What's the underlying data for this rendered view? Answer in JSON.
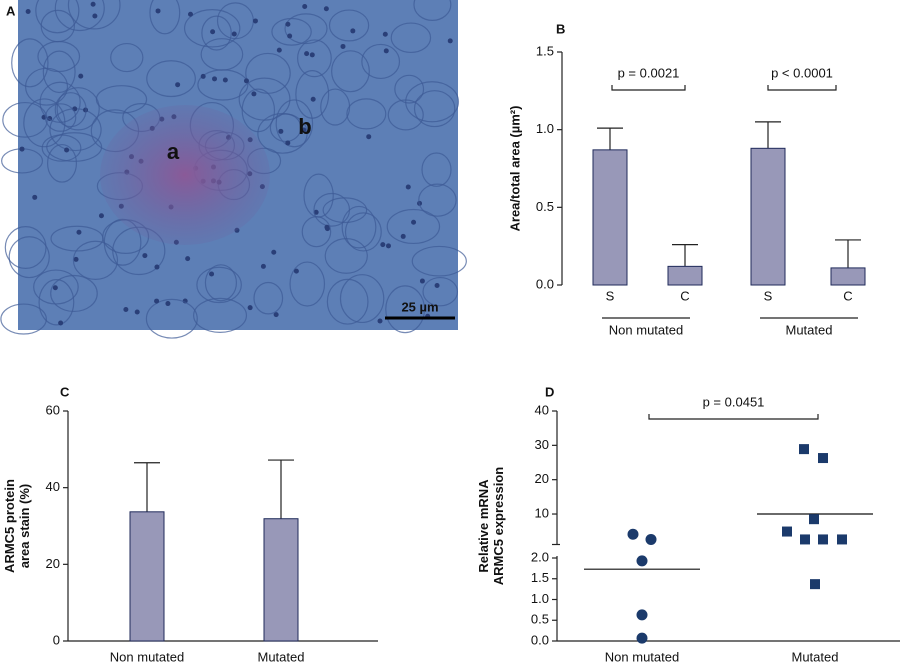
{
  "chart_data": [
    {
      "type": "image",
      "panel_label": "A",
      "annotations": [
        "a",
        "b"
      ],
      "scale_bar": "25 µm"
    },
    {
      "type": "bar",
      "panel_label": "B",
      "y_label": [
        "Area/total area (µm²)"
      ],
      "categories": [
        "S",
        "C",
        "S",
        "C"
      ],
      "groups": [
        "Non mutated",
        "Mutated"
      ],
      "values": [
        0.87,
        0.12,
        0.88,
        0.11
      ],
      "errors": [
        0.14,
        0.14,
        0.17,
        0.18
      ],
      "color": "#9898b8",
      "ylim": [
        0,
        1.5
      ],
      "yticks": [
        {
          "value": 0,
          "label": "0.0"
        },
        0.5,
        {
          "value": 1,
          "label": "1.0"
        },
        1.5
      ],
      "annotations": [
        "p = 0.0021",
        "p < 0.0001"
      ]
    },
    {
      "type": "bar",
      "panel_label": "C",
      "y_label": [
        "ARMC5 protein",
        "area stain (%)"
      ],
      "categories": [
        "Non mutated",
        "Mutated"
      ],
      "values": [
        33.7,
        31.9
      ],
      "errors": [
        12.8,
        15.3
      ],
      "color": "#9898b8",
      "ylim": [
        0,
        60
      ],
      "yticks": [
        0,
        20,
        40,
        60
      ]
    },
    {
      "type": "scatter",
      "panel_label": "D",
      "y_label": [
        "Relative mRNA",
        "ARMC5 expression"
      ],
      "categories": [
        "Non mutated",
        "Mutated"
      ],
      "values": [
        [
          4.1,
          2.6,
          1.93,
          0.63,
          0.07
        ],
        [
          28.9,
          26.3,
          4.9,
          8.5,
          2.6,
          2.6,
          2.6,
          1.37
        ]
      ],
      "means": [
        1.73,
        10
      ],
      "markers": [
        "circle",
        "square"
      ],
      "color": "#1b3a6b",
      "y_segments": [
        {
          "ylim": [
            0,
            2
          ],
          "yticks": [
            {
              "value": 0,
              "label": "0.0"
            },
            0.5,
            {
              "value": 1,
              "label": "1.0"
            },
            1.5,
            {
              "value": 2,
              "label": "2.0"
            }
          ]
        },
        {
          "ylim": [
            2,
            40
          ],
          "yticks": [
            10,
            20,
            30,
            40
          ]
        }
      ],
      "annotations": [
        "p = 0.0451"
      ]
    }
  ]
}
